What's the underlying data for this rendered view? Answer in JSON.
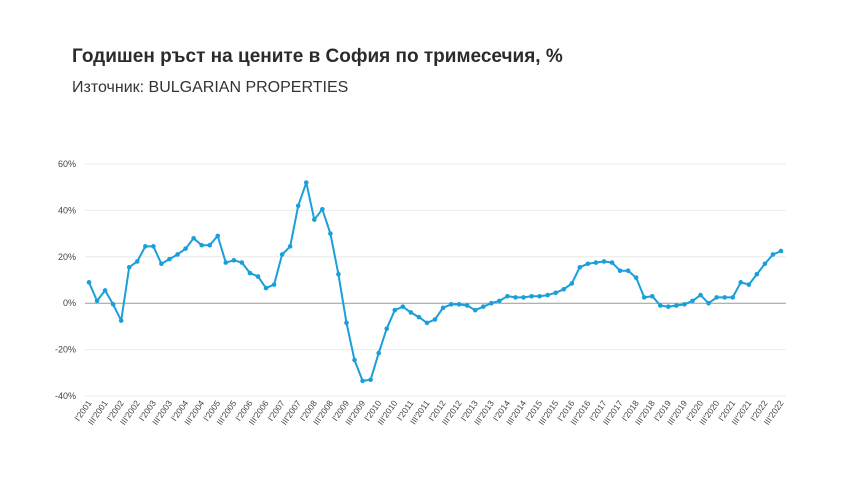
{
  "chart_data": {
    "type": "line",
    "title": "Годишен ръст на цените в София по тримесечия, %",
    "subtitle": "Източник: BULGARIAN PROPERTIES",
    "xlabel": "",
    "ylabel": "",
    "ylim": [
      -40,
      60
    ],
    "yticks": [
      "-40%",
      "-20%",
      "0%",
      "20%",
      "40%",
      "60%"
    ],
    "ytick_values": [
      -40,
      -20,
      0,
      20,
      40,
      60
    ],
    "grid": true,
    "legend": "none",
    "colors": {
      "line": "#1a9fdb",
      "grid": "#e6e6e6",
      "zero": "#999999"
    },
    "x_tick_labels": [
      "I'2001",
      "III'2001",
      "I'2002",
      "III'2002",
      "I'2003",
      "III'2003",
      "I'2004",
      "III'2004",
      "I'2005",
      "III'2005",
      "I'2006",
      "III'2006",
      "I'2007",
      "III'2007",
      "I'2008",
      "III'2008",
      "I'2009",
      "III'2009",
      "I'2010",
      "III'2010",
      "I'2011",
      "III'2011",
      "I'2012",
      "III'2012",
      "I'2013",
      "III'2013",
      "I'2014",
      "III'2014",
      "I'2015",
      "III'2015",
      "I'2016",
      "III'2016",
      "I'2017",
      "III'2017",
      "I'2018",
      "III'2018",
      "I'2019",
      "III'2019",
      "I'2020",
      "III'2020",
      "I'2021",
      "III'2021",
      "I'2022",
      "III'2022"
    ],
    "series": [
      {
        "values": [
          9,
          1,
          5.5,
          -0.5,
          -7.5,
          15.5,
          18,
          24.5,
          24.5,
          17,
          19,
          21,
          23.5,
          28,
          25,
          25,
          29,
          17.5,
          18.5,
          17.5,
          13,
          11.5,
          6.5,
          8,
          21,
          24.5,
          42,
          52,
          36,
          40.5,
          30,
          12.5,
          -8.5,
          -24.5,
          -33.5,
          -33,
          -21.5,
          -11,
          -3,
          -1.5,
          -4,
          -6,
          -8.5,
          -7,
          -2,
          -0.5,
          -0.5,
          -1,
          -3,
          -1.5,
          0,
          1,
          3,
          2.5,
          2.5,
          3,
          3,
          3.5,
          4.5,
          6,
          8.5,
          15.5,
          17,
          17.5,
          18,
          17.5,
          14,
          14,
          11,
          2.5,
          3,
          -1,
          -1.5,
          -1,
          -0.5,
          1,
          3.5,
          0,
          2.5,
          2.5,
          2.5,
          9,
          8,
          12.5,
          17,
          21,
          22.5
        ]
      }
    ]
  }
}
